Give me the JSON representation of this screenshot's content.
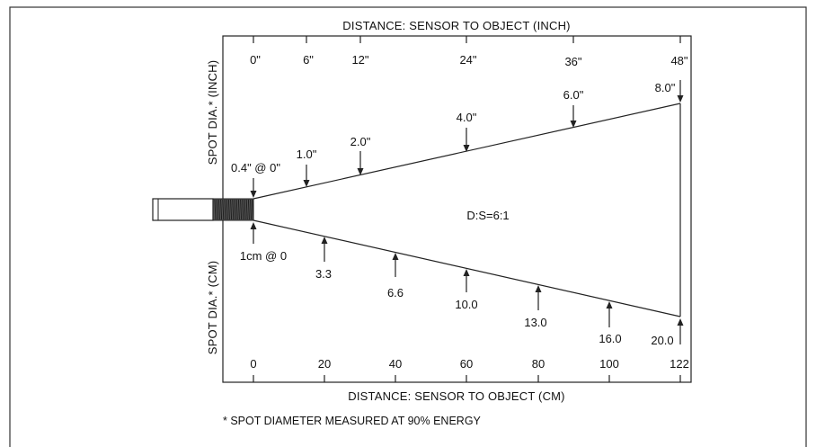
{
  "diagram": {
    "top_axis_title": "DISTANCE: SENSOR TO OBJECT (INCH)",
    "bottom_axis_title": "DISTANCE: SENSOR TO OBJECT (CM)",
    "left_upper_label": "SPOT DIA.* (INCH)",
    "left_lower_label": "SPOT DIA.* (CM)",
    "ratio_label": "D:S=6:1",
    "footnote": "* SPOT DIAMETER MEASURED AT 90% ENERGY",
    "inch_ticks": [
      {
        "label": "0\"",
        "value": 0
      },
      {
        "label": "6\"",
        "value": 6
      },
      {
        "label": "12\"",
        "value": 12
      },
      {
        "label": "24\"",
        "value": 24
      },
      {
        "label": "36\"",
        "value": 36
      },
      {
        "label": "48\"",
        "value": 48
      }
    ],
    "cm_ticks": [
      {
        "label": "0",
        "value": 0
      },
      {
        "label": "20",
        "value": 20
      },
      {
        "label": "40",
        "value": 40
      },
      {
        "label": "60",
        "value": 60
      },
      {
        "label": "80",
        "value": 80
      },
      {
        "label": "100",
        "value": 100
      },
      {
        "label": "122",
        "value": 122
      }
    ],
    "spot_inch": [
      {
        "label": "0.4\" @  0\"",
        "distance_in": 0
      },
      {
        "label": "1.0\"",
        "distance_in": 6
      },
      {
        "label": "2.0\"",
        "distance_in": 12
      },
      {
        "label": "4.0\"",
        "distance_in": 24
      },
      {
        "label": "6.0\"",
        "distance_in": 36
      },
      {
        "label": "8.0\"",
        "distance_in": 48
      }
    ],
    "spot_cm": [
      {
        "label": "1cm @ 0",
        "distance_cm": 0
      },
      {
        "label": "3.3",
        "distance_cm": 20
      },
      {
        "label": "6.6",
        "distance_cm": 40
      },
      {
        "label": "10.0",
        "distance_cm": 60
      },
      {
        "label": "13.0",
        "distance_cm": 80
      },
      {
        "label": "16.0",
        "distance_cm": 100
      },
      {
        "label": "20.0",
        "distance_cm": 122
      }
    ]
  }
}
